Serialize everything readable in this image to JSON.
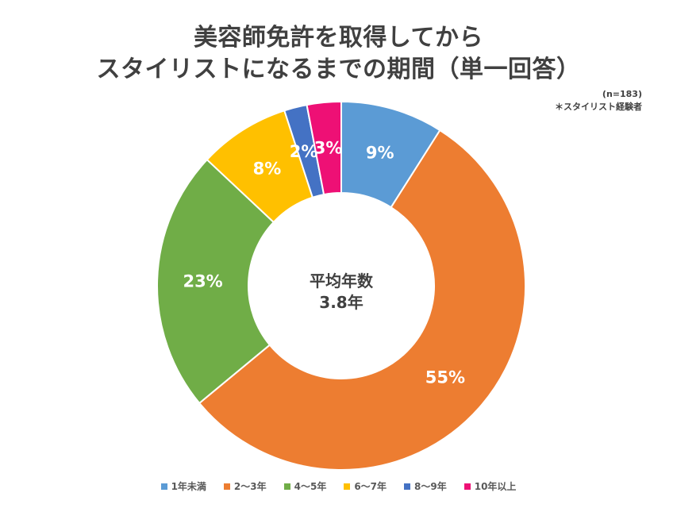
{
  "chart_data": {
    "type": "pie",
    "style": "donut",
    "title_lines": [
      "美容師免許を取得してから",
      "スタイリストになるまでの期間（単一回答）"
    ],
    "notes": [
      "(n=183)",
      "＊スタイリスト経験者"
    ],
    "center_text": [
      "平均年数",
      "3.8年"
    ],
    "categories": [
      "1年未満",
      "2〜3年",
      "4〜5年",
      "6〜7年",
      "8〜9年",
      "10年以上"
    ],
    "values": [
      9,
      55,
      23,
      8,
      2,
      3
    ],
    "value_labels": [
      "9%",
      "55%",
      "23%",
      "8%",
      "2%",
      "3%"
    ],
    "colors": [
      "#5b9bd5",
      "#ed7d31",
      "#70ad47",
      "#ffc000",
      "#4472c4",
      "#ee1075"
    ],
    "legend_position": "bottom"
  }
}
